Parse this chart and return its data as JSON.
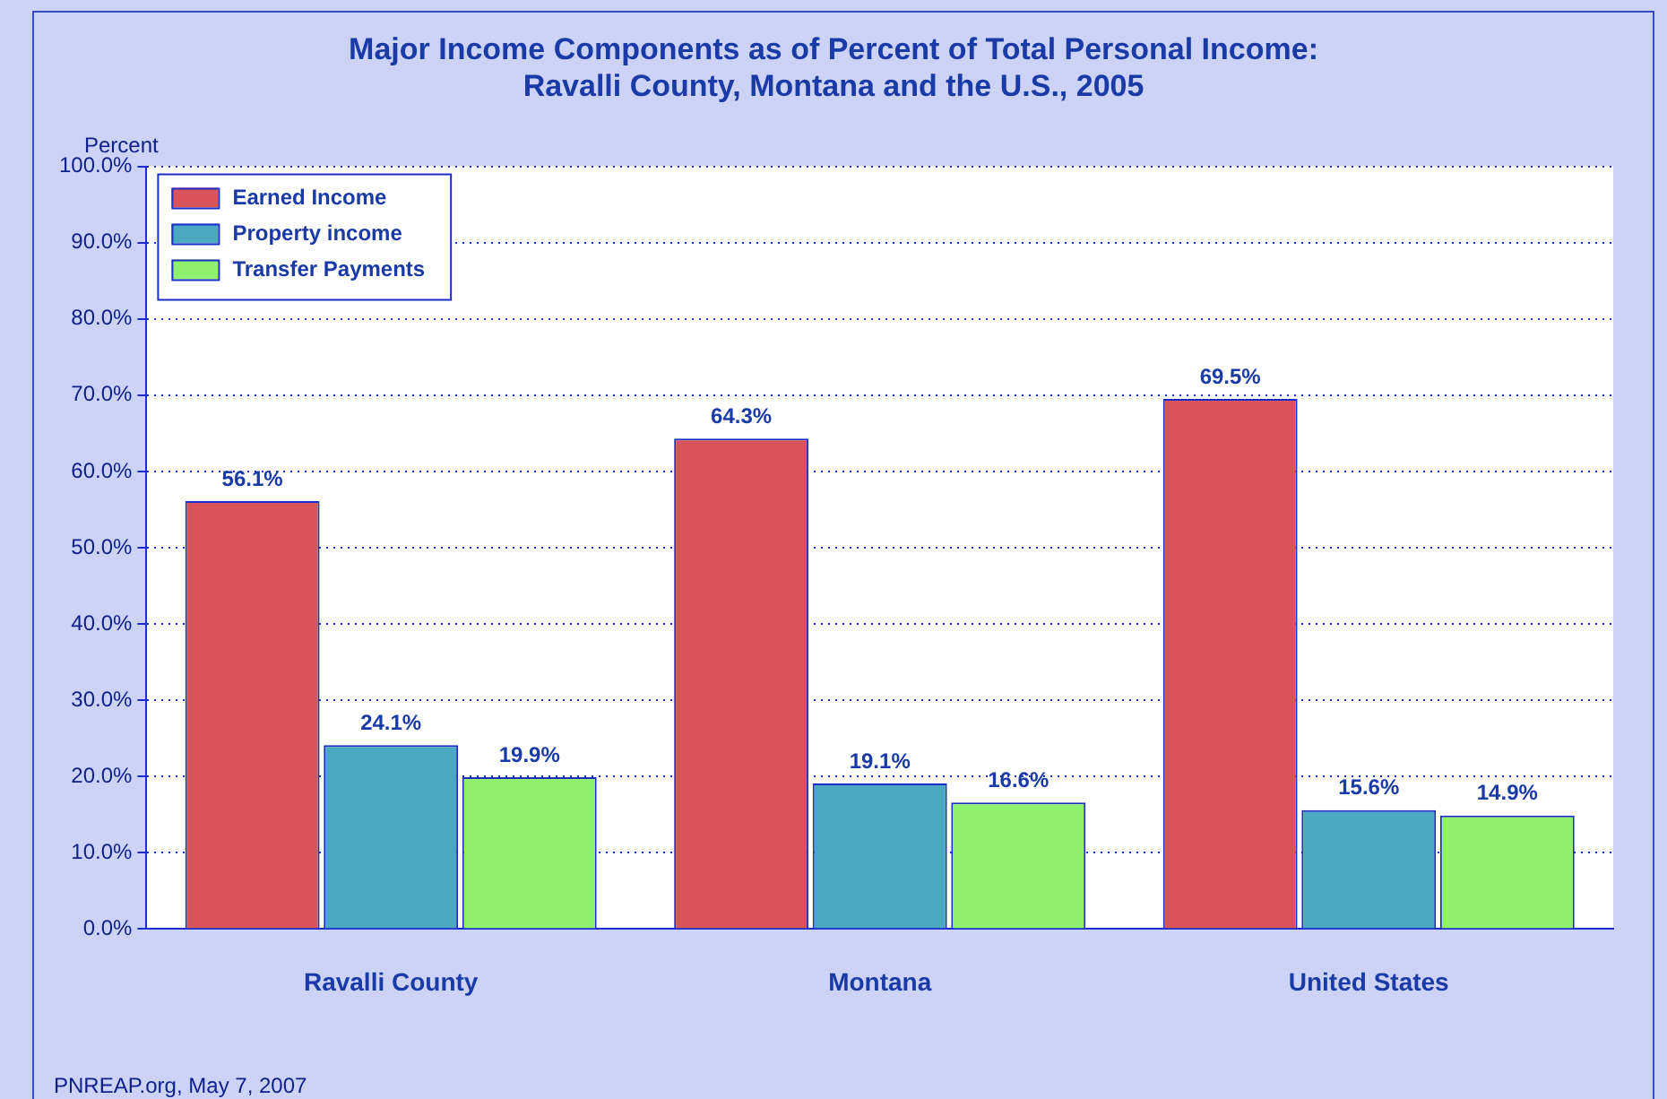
{
  "chart_data": {
    "type": "bar",
    "title": "Major Income Components as of Percent of Total Personal Income:\nRavalli County, Montana and the U.S., 2005",
    "ylabel": "Percent",
    "categories": [
      "Ravalli County",
      "Montana",
      "United States"
    ],
    "series": [
      {
        "name": "Earned Income",
        "color": "#d9545a",
        "values": [
          56.1,
          64.3,
          69.5
        ],
        "value_labels": [
          "56.1%",
          "64.3%",
          "69.5%"
        ]
      },
      {
        "name": "Property income",
        "color": "#4aa8c0",
        "values": [
          24.1,
          19.1,
          15.6
        ],
        "value_labels": [
          "24.1%",
          "19.1%",
          "15.6%"
        ]
      },
      {
        "name": "Transfer Payments",
        "color": "#8ef06c",
        "values": [
          19.9,
          16.6,
          14.9
        ],
        "value_labels": [
          "19.9%",
          "16.6%",
          "14.9%"
        ]
      }
    ],
    "ylim": [
      0,
      100
    ],
    "yticks": [
      {
        "value": 0,
        "label": "0.0%"
      },
      {
        "value": 10,
        "label": "10.0%"
      },
      {
        "value": 20,
        "label": "20.0%"
      },
      {
        "value": 30,
        "label": "30.0%"
      },
      {
        "value": 40,
        "label": "40.0%"
      },
      {
        "value": 50,
        "label": "50.0%"
      },
      {
        "value": 60,
        "label": "60.0%"
      },
      {
        "value": 70,
        "label": "70.0%"
      },
      {
        "value": 80,
        "label": "80.0%"
      },
      {
        "value": 90,
        "label": "90.0%"
      },
      {
        "value": 100,
        "label": "100.0%"
      }
    ],
    "grid": "y",
    "legend": "top left",
    "annotations": [
      "PNREAP.org, May 7, 2007"
    ]
  }
}
